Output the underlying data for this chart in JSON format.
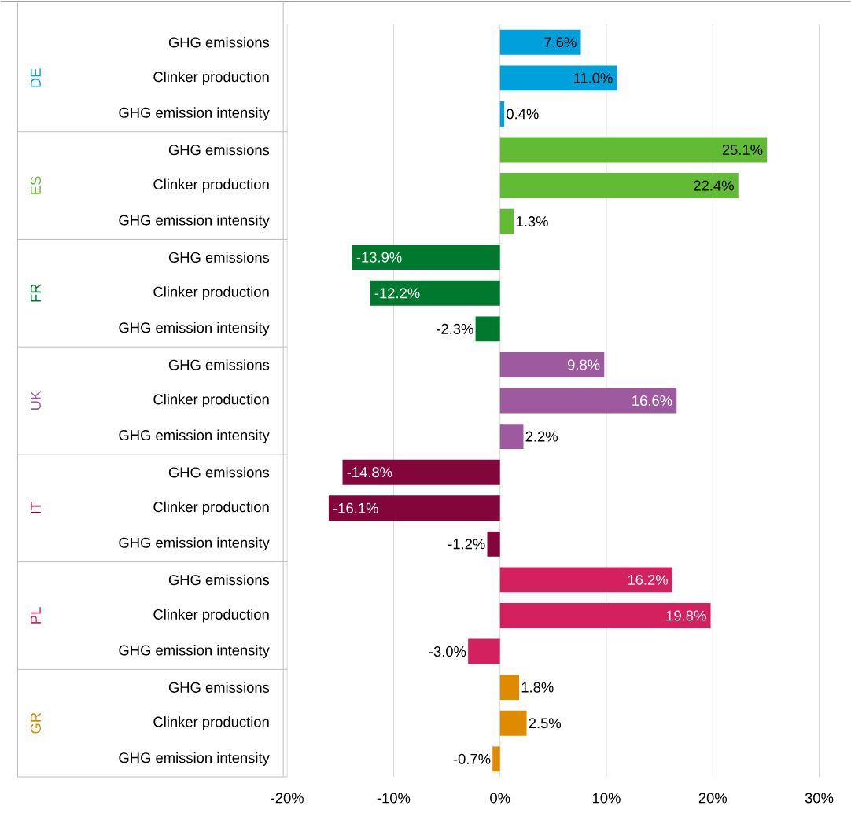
{
  "chart_data": {
    "type": "bar",
    "orientation": "horizontal",
    "categories": [
      "GHG emissions",
      "Clinker production",
      "GHG emission intensity",
      "GHG emissions",
      "Clinker production",
      "GHG emission intensity",
      "GHG emissions",
      "Clinker production",
      "GHG emission intensity",
      "GHG emissions",
      "Clinker production",
      "GHG emission intensity",
      "GHG emissions",
      "Clinker production",
      "GHG emission intensity",
      "GHG emissions",
      "Clinker production",
      "GHG emission intensity",
      "GHG emissions",
      "Clinker production",
      "GHG emission intensity"
    ],
    "series": [
      {
        "name": "DE",
        "color": "#00a0dc",
        "values": [
          7.6,
          11.0,
          0.4,
          null,
          null,
          null,
          null,
          null,
          null,
          null,
          null,
          null,
          null,
          null,
          null,
          null,
          null,
          null,
          null,
          null,
          null
        ],
        "value_labels": [
          "7.6%",
          "11.0%",
          "0.4%",
          null,
          null,
          null,
          null,
          null,
          null,
          null,
          null,
          null,
          null,
          null,
          null,
          null,
          null,
          null,
          null,
          null,
          null
        ]
      },
      {
        "name": "ES",
        "color": "#62bb35",
        "values": [
          null,
          null,
          null,
          25.1,
          22.4,
          1.3,
          null,
          null,
          null,
          null,
          null,
          null,
          null,
          null,
          null,
          null,
          null,
          null,
          null,
          null,
          null
        ],
        "value_labels": [
          null,
          null,
          null,
          "25.1%",
          "22.4%",
          "1.3%",
          null,
          null,
          null,
          null,
          null,
          null,
          null,
          null,
          null,
          null,
          null,
          null,
          null,
          null,
          null
        ]
      },
      {
        "name": "FR",
        "color": "#00782d",
        "values": [
          null,
          null,
          null,
          null,
          null,
          null,
          -13.9,
          -12.2,
          -2.3,
          null,
          null,
          null,
          null,
          null,
          null,
          null,
          null,
          null,
          null,
          null,
          null
        ],
        "value_labels": [
          null,
          null,
          null,
          null,
          null,
          null,
          "-13.9%",
          "-12.2%",
          "-2.3%",
          null,
          null,
          null,
          null,
          null,
          null,
          null,
          null,
          null,
          null,
          null,
          null
        ]
      },
      {
        "name": "UK",
        "color": "#9e5a9e",
        "values": [
          null,
          null,
          null,
          null,
          null,
          null,
          null,
          null,
          null,
          9.8,
          16.6,
          2.2,
          null,
          null,
          null,
          null,
          null,
          null,
          null,
          null,
          null
        ],
        "value_labels": [
          null,
          null,
          null,
          null,
          null,
          null,
          null,
          null,
          null,
          "9.8%",
          "16.6%",
          "2.2%",
          null,
          null,
          null,
          null,
          null,
          null,
          null,
          null,
          null
        ]
      },
      {
        "name": "IT",
        "color": "#83063a",
        "values": [
          null,
          null,
          null,
          null,
          null,
          null,
          null,
          null,
          null,
          null,
          null,
          null,
          -14.8,
          -16.1,
          -1.2,
          null,
          null,
          null,
          null,
          null,
          null
        ],
        "value_labels": [
          null,
          null,
          null,
          null,
          null,
          null,
          null,
          null,
          null,
          null,
          null,
          null,
          "-14.8%",
          "-16.1%",
          "-1.2%",
          null,
          null,
          null,
          null,
          null,
          null
        ]
      },
      {
        "name": "PL",
        "color": "#d2215e",
        "values": [
          null,
          null,
          null,
          null,
          null,
          null,
          null,
          null,
          null,
          null,
          null,
          null,
          null,
          null,
          null,
          16.2,
          19.8,
          -3.0,
          null,
          null,
          null
        ],
        "value_labels": [
          null,
          null,
          null,
          null,
          null,
          null,
          null,
          null,
          null,
          null,
          null,
          null,
          null,
          null,
          null,
          "16.2%",
          "19.8%",
          "-3.0%",
          null,
          null,
          null
        ]
      },
      {
        "name": "GR",
        "color": "#e08a00",
        "values": [
          null,
          null,
          null,
          null,
          null,
          null,
          null,
          null,
          null,
          null,
          null,
          null,
          null,
          null,
          null,
          null,
          null,
          null,
          1.8,
          2.5,
          -0.7
        ],
        "value_labels": [
          null,
          null,
          null,
          null,
          null,
          null,
          null,
          null,
          null,
          null,
          null,
          null,
          null,
          null,
          null,
          null,
          null,
          null,
          "1.8%",
          "2.5%",
          "-0.7%"
        ]
      }
    ],
    "xlim": [
      -20,
      30
    ],
    "xticks": [
      {
        "value": -20,
        "label": "-20%"
      },
      {
        "value": -10,
        "label": "-10%"
      },
      {
        "value": 0,
        "label": "0%"
      },
      {
        "value": 10,
        "label": "10%"
      },
      {
        "value": 20,
        "label": "20%"
      },
      {
        "value": 30,
        "label": "30%"
      }
    ],
    "grid": "x"
  }
}
